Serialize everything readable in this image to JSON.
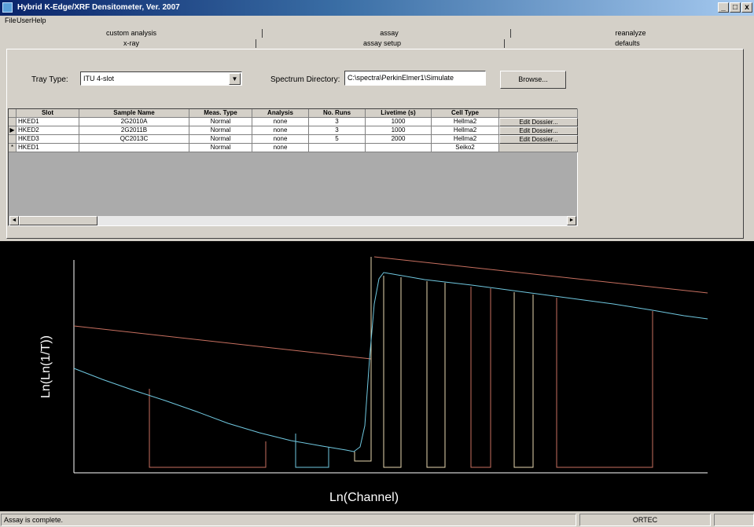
{
  "window": {
    "title": "Hybrid K-Edge/XRF Densitometer, Ver. 2007",
    "min": "_",
    "max": "□",
    "close": "x"
  },
  "menu": [
    "File",
    "User",
    "Help"
  ],
  "tabs_back": [
    "custom analysis",
    "assay",
    "reanalyze"
  ],
  "tabs_front": [
    "x-ray",
    "assay setup",
    "defaults"
  ],
  "form": {
    "tray_type_label": "Tray Type:",
    "tray_type_value": "ITU 4-slot",
    "spectrum_dir_label": "Spectrum Directory:",
    "spectrum_dir_value": "C:\\spectra\\PerkinElmer1\\Simulate",
    "browse_label": "Browse..."
  },
  "table": {
    "columns": [
      "Slot",
      "Sample Name",
      "Meas. Type",
      "Analysis",
      "No. Runs",
      "Livetime (s)",
      "Cell Type",
      ""
    ],
    "rows": [
      {
        "marker": "",
        "slot": "HKED1",
        "sample": "2G2010A",
        "meas": "Normal",
        "analysis": "none",
        "runs": "3",
        "live": "1000",
        "cell": "Hellma2",
        "action": "Edit Dossier..."
      },
      {
        "marker": "▶",
        "slot": "HKED2",
        "sample": "2G2011B",
        "meas": "Normal",
        "analysis": "none",
        "runs": "3",
        "live": "1000",
        "cell": "Hellma2",
        "action": "Edit Dossier..."
      },
      {
        "marker": "",
        "slot": "HKED3",
        "sample": "QC2013C",
        "meas": "Normal",
        "analysis": "none",
        "runs": "5",
        "live": "2000",
        "cell": "Hellma2",
        "action": "Edit Dossier..."
      },
      {
        "marker": "*",
        "slot": "HKED1",
        "sample": "",
        "meas": "Normal",
        "analysis": "none",
        "runs": "",
        "live": "",
        "cell": "Seiko2",
        "action": ""
      }
    ],
    "scroll_left": "◄",
    "scroll_right": "►"
  },
  "plot": {
    "xlabel": "Ln(Channel)",
    "ylabel": "Ln(Ln(1/T))",
    "colors": {
      "axes": "#ffffff",
      "fit": "#c87060",
      "spectrum": "#70c8e0",
      "edge": "#e8d8b0"
    }
  },
  "status": {
    "message": "Assay is complete.",
    "vendor": "ORTEC",
    "extra": ""
  }
}
